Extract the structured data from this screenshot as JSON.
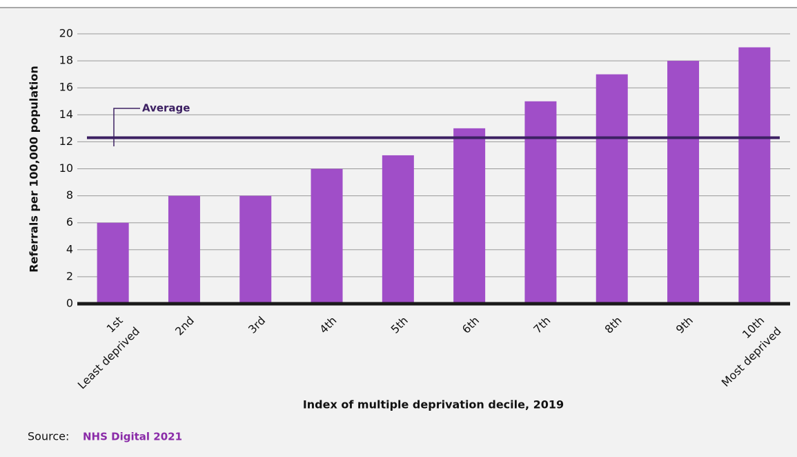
{
  "chart_data": {
    "type": "bar",
    "categories": [
      [
        "1st",
        "Least deprived"
      ],
      [
        "2nd"
      ],
      [
        "3rd"
      ],
      [
        "4th"
      ],
      [
        "5th"
      ],
      [
        "6th"
      ],
      [
        "7th"
      ],
      [
        "8th"
      ],
      [
        "9th"
      ],
      [
        "10th",
        "Most deprived"
      ]
    ],
    "values": [
      6,
      8,
      8,
      10,
      11,
      13,
      15,
      17,
      18,
      19
    ],
    "color": "#a04ec8",
    "x_label": "Index of multiple deprivation decile, 2019",
    "y_label": "Referrals per 100,000 population",
    "ylim": [
      0,
      20
    ],
    "yticks": [
      0,
      2,
      4,
      6,
      8,
      10,
      12,
      14,
      16,
      18,
      20
    ],
    "grid": true,
    "reference_line": {
      "label": "Average",
      "value": 12.3,
      "color": "#3d2163"
    }
  },
  "source": {
    "prefix": "Source:",
    "text": "NHS Digital 2021"
  }
}
